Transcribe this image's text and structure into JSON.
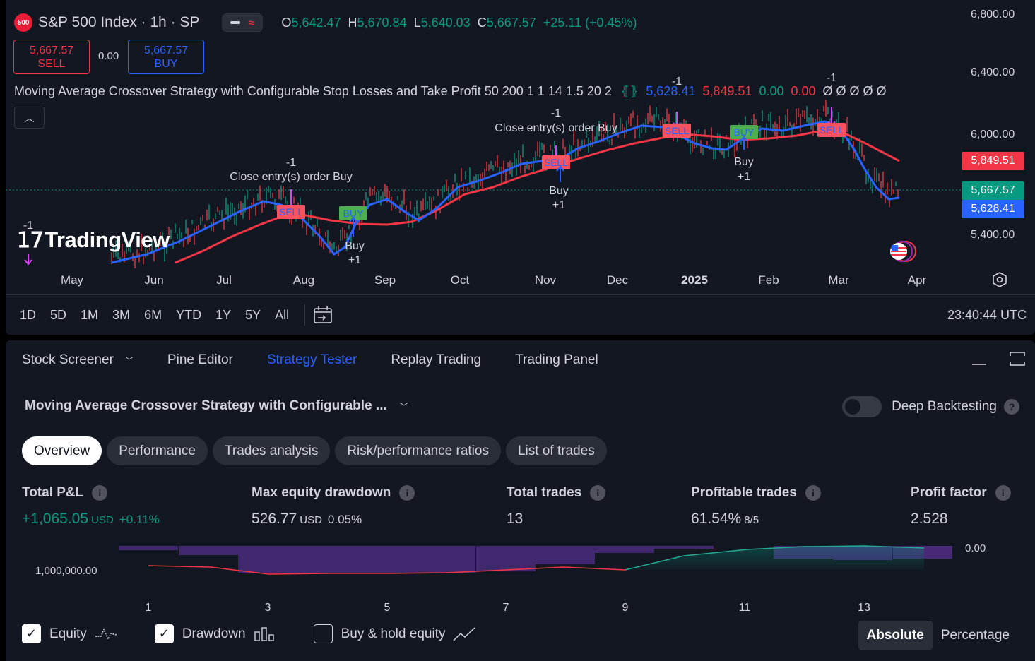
{
  "header": {
    "symbol_badge": "500",
    "symbol_title": "S&P 500 Index · 1h · SP",
    "ohlc": {
      "o_label": "O",
      "o_value": "5,642.47",
      "h_label": "H",
      "h_value": "5,670.84",
      "l_label": "L",
      "l_value": "5,640.03",
      "c_label": "C",
      "c_value": "5,667.57",
      "change": "+25.11 (+0.45%)"
    },
    "sell_price": "5,667.57",
    "sell_label": "SELL",
    "spread": "0.00",
    "buy_price": "5,667.57",
    "buy_label": "BUY"
  },
  "strategy_legend": {
    "name": "Moving Average Crossover Strategy with Configurable Stop Losses and Take Profit 50 200 1 1 14 1.5 20 2",
    "ma_blue": "5,628.41",
    "ma_red": "5,849.51",
    "zero_green": "0.00",
    "zero_red": "0.00",
    "empties": "Ø Ø Ø Ø Ø"
  },
  "watermark": "TradingView",
  "price_axis": {
    "ticks": [
      "6,800.00",
      "6,400.00",
      "6,000.00",
      "5,400.00"
    ],
    "tag_red": "5,849.51",
    "tag_green": "5,667.57",
    "tag_blue": "5,628.41"
  },
  "time_axis": {
    "ticks": [
      "May",
      "Jun",
      "Jul",
      "Aug",
      "Sep",
      "Oct",
      "Nov",
      "Dec",
      "2025",
      "Feb",
      "Mar",
      "Apr"
    ]
  },
  "annotations": {
    "minus_one": "-1",
    "plus_one": "+1",
    "close_entry": "Close entry(s) order Buy",
    "buy": "Buy",
    "sell_tag": "SELL",
    "buy_tag": "BUY"
  },
  "range_bar": {
    "ranges": [
      "1D",
      "5D",
      "1M",
      "3M",
      "6M",
      "YTD",
      "1Y",
      "5Y",
      "All"
    ],
    "clock": "23:40:44 UTC"
  },
  "bottom_tabs": {
    "items": [
      "Stock Screener",
      "Pine Editor",
      "Strategy Tester",
      "Replay Trading",
      "Trading Panel"
    ],
    "active": "Strategy Tester"
  },
  "strategy_tester": {
    "strategy_name": "Moving Average Crossover Strategy with Configurable ...",
    "deep_backtesting_label": "Deep Backtesting",
    "subtabs": [
      "Overview",
      "Performance",
      "Trades analysis",
      "Risk/performance ratios",
      "List of trades"
    ],
    "active_subtab": "Overview",
    "stats": {
      "total_pnl": {
        "label": "Total P&L",
        "value": "+1,065.05",
        "unit": "USD",
        "extra": "+0.11%"
      },
      "max_dd": {
        "label": "Max equity drawdown",
        "value": "526.77",
        "unit": "USD",
        "extra": "0.05%"
      },
      "total_trades": {
        "label": "Total trades",
        "value": "13"
      },
      "profitable": {
        "label": "Profitable trades",
        "value": "61.54%",
        "extra": "8/5"
      },
      "profit_factor": {
        "label": "Profit factor",
        "value": "2.528"
      }
    },
    "equity_chart": {
      "y_left": "1,000,000.00",
      "y_right": "0.00",
      "x_ticks": [
        "1",
        "3",
        "5",
        "7",
        "9",
        "11",
        "13"
      ]
    },
    "legend": {
      "equity": "Equity",
      "drawdown": "Drawdown",
      "buy_hold": "Buy & hold equity",
      "equity_checked": true,
      "drawdown_checked": true,
      "buy_hold_checked": false
    },
    "mode_absolute": "Absolute",
    "mode_percentage": "Percentage"
  },
  "colors": {
    "green": "#089981",
    "red": "#f23645",
    "blue": "#2962ff",
    "panel": "#131722"
  }
}
